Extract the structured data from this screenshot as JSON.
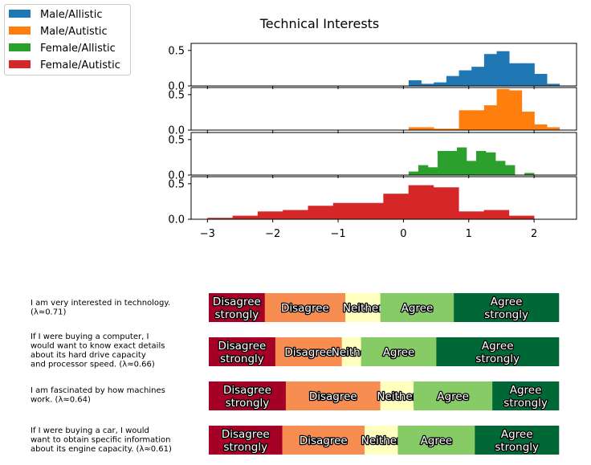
{
  "chart_data": [
    {
      "type": "histogram",
      "title": "Technical Interests",
      "xlim": [
        -3.25,
        2.65
      ],
      "ylim": [
        0,
        0.6
      ],
      "x_ticks": [
        "−3",
        "−2",
        "−1",
        "0",
        "1",
        "2"
      ],
      "y_ticks": [
        "0.0",
        "0.5"
      ],
      "bin_edges": [
        -3.0,
        -2.62,
        -2.23,
        -1.85,
        -1.46,
        -1.08,
        -0.69,
        -0.31,
        0.08,
        0.46,
        0.85,
        1.23,
        1.62,
        2.0,
        2.39
      ],
      "legend": {
        "position": "top-left",
        "entries": [
          "Male/Allistic",
          "Male/Autistic",
          "Female/Allistic",
          "Female/Autistic"
        ]
      },
      "series": [
        {
          "name": "Male/Allistic",
          "color": "#1f77b4",
          "start": 0.08,
          "end": 2.39,
          "values": [
            0.08,
            0.03,
            0.05,
            0.14,
            0.22,
            0.27,
            0.45,
            0.49,
            0.32,
            0.32,
            0.17,
            0.03
          ]
        },
        {
          "name": "Male/Autistic",
          "color": "#ff7f0e",
          "start": 0.08,
          "end": 2.39,
          "values": [
            0.04,
            0.04,
            0.02,
            0.02,
            0.28,
            0.28,
            0.35,
            0.58,
            0.56,
            0.26,
            0.08,
            0.04
          ]
        },
        {
          "name": "Female/Allistic",
          "color": "#2ca02c",
          "start": 0.08,
          "end": 2.0,
          "values": [
            0.05,
            0.14,
            0.11,
            0.34,
            0.34,
            0.39,
            0.2,
            0.34,
            0.32,
            0.2,
            0.14,
            0.0,
            0.03
          ]
        },
        {
          "name": "Female/Autistic",
          "color": "#d62728",
          "start": -3.0,
          "end": 2.0,
          "values": [
            0.02,
            0.05,
            0.11,
            0.13,
            0.19,
            0.23,
            0.23,
            0.36,
            0.48,
            0.45,
            0.11,
            0.13,
            0.05
          ]
        }
      ]
    },
    {
      "type": "stacked-bar",
      "categories": [
        "Disagree strongly",
        "Disagree",
        "Neither",
        "Agree",
        "Agree strongly"
      ],
      "colors": [
        "#a50026",
        "#f88d52",
        "#ffffbf",
        "#86cb66",
        "#006837"
      ],
      "segment_labels": [
        [
          "Disagree",
          "strongly"
        ],
        [
          "Disagree"
        ],
        [
          "Neither"
        ],
        [
          "Agree"
        ],
        [
          "Agree",
          "strongly"
        ]
      ],
      "questions": [
        {
          "text": [
            "I am very interested in technology.",
            "(λ≈0.71)"
          ],
          "values": [
            0.16,
            0.23,
            0.1,
            0.21,
            0.3
          ]
        },
        {
          "text": [
            "If I were buying a computer, I",
            "would want to know exact details",
            "about its hard drive capacity",
            "and processor speed. (λ≈0.66)"
          ],
          "values": [
            0.19,
            0.19,
            0.055,
            0.215,
            0.35
          ]
        },
        {
          "text": [
            "I am fascinated by how machines",
            "work. (λ≈0.64)"
          ],
          "values": [
            0.22,
            0.27,
            0.095,
            0.225,
            0.19
          ]
        },
        {
          "text": [
            "If I were buying a car, I would",
            "want to obtain specific information",
            "about its engine capacity. (λ≈0.61)"
          ],
          "values": [
            0.21,
            0.235,
            0.095,
            0.22,
            0.24
          ]
        }
      ]
    }
  ]
}
